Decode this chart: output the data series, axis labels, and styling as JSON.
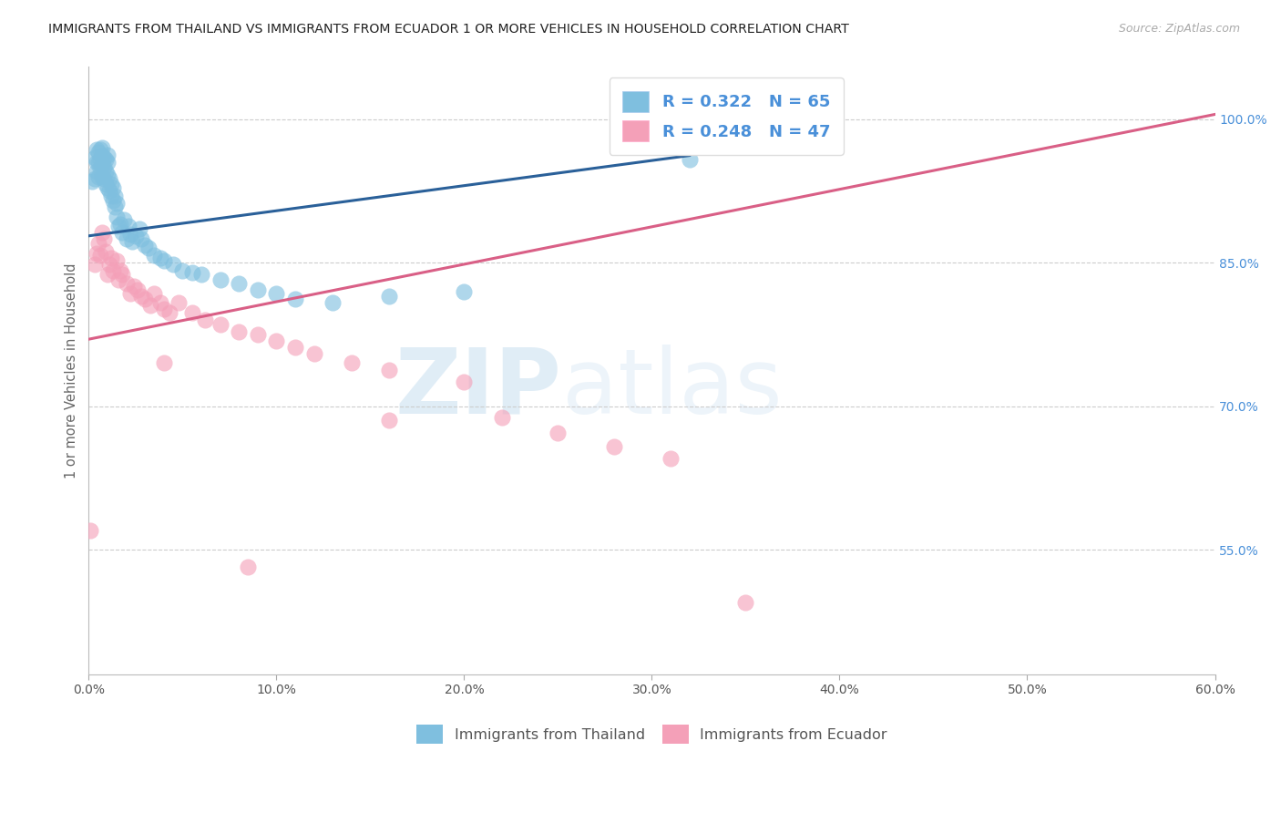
{
  "title": "IMMIGRANTS FROM THAILAND VS IMMIGRANTS FROM ECUADOR 1 OR MORE VEHICLES IN HOUSEHOLD CORRELATION CHART",
  "source": "Source: ZipAtlas.com",
  "ylabel": "1 or more Vehicles in Household",
  "ytick_vals": [
    0.55,
    0.7,
    0.85,
    1.0
  ],
  "ytick_labels": [
    "55.0%",
    "70.0%",
    "85.0%",
    "100.0%"
  ],
  "xtick_vals": [
    0.0,
    0.1,
    0.2,
    0.3,
    0.4,
    0.5,
    0.6
  ],
  "xtick_labels": [
    "0.0%",
    "10.0%",
    "20.0%",
    "30.0%",
    "40.0%",
    "50.0%",
    "60.0%"
  ],
  "xmin": 0.0,
  "xmax": 0.6,
  "ymin": 0.42,
  "ymax": 1.055,
  "thailand_R": "0.322",
  "thailand_N": "65",
  "ecuador_R": "0.248",
  "ecuador_N": "47",
  "thailand_color": "#7fbfdf",
  "ecuador_color": "#f4a0b8",
  "thailand_line_color": "#2a6099",
  "ecuador_line_color": "#d95f86",
  "legend_text_color": "#4a90d9",
  "background_color": "#ffffff",
  "thailand_trendline_x": [
    0.0,
    0.32
  ],
  "thailand_trendline_y": [
    0.878,
    0.962
  ],
  "ecuador_trendline_x": [
    0.0,
    0.6
  ],
  "ecuador_trendline_y": [
    0.77,
    1.005
  ],
  "thailand_scatter_x": [
    0.002,
    0.003,
    0.003,
    0.004,
    0.004,
    0.004,
    0.005,
    0.005,
    0.005,
    0.006,
    0.006,
    0.006,
    0.007,
    0.007,
    0.007,
    0.007,
    0.008,
    0.008,
    0.008,
    0.009,
    0.009,
    0.009,
    0.01,
    0.01,
    0.01,
    0.01,
    0.011,
    0.011,
    0.012,
    0.012,
    0.013,
    0.013,
    0.014,
    0.014,
    0.015,
    0.015,
    0.016,
    0.017,
    0.018,
    0.019,
    0.02,
    0.021,
    0.022,
    0.023,
    0.025,
    0.027,
    0.028,
    0.03,
    0.032,
    0.035,
    0.038,
    0.04,
    0.045,
    0.05,
    0.055,
    0.06,
    0.07,
    0.08,
    0.09,
    0.1,
    0.11,
    0.13,
    0.16,
    0.2,
    0.32
  ],
  "thailand_scatter_y": [
    0.935,
    0.938,
    0.96,
    0.945,
    0.955,
    0.968,
    0.94,
    0.955,
    0.965,
    0.948,
    0.958,
    0.968,
    0.94,
    0.952,
    0.962,
    0.97,
    0.938,
    0.95,
    0.96,
    0.932,
    0.945,
    0.958,
    0.928,
    0.942,
    0.955,
    0.963,
    0.925,
    0.938,
    0.92,
    0.932,
    0.915,
    0.928,
    0.908,
    0.92,
    0.898,
    0.912,
    0.888,
    0.89,
    0.882,
    0.895,
    0.875,
    0.888,
    0.88,
    0.872,
    0.878,
    0.885,
    0.875,
    0.868,
    0.865,
    0.858,
    0.855,
    0.852,
    0.848,
    0.842,
    0.84,
    0.838,
    0.832,
    0.828,
    0.822,
    0.818,
    0.812,
    0.808,
    0.815,
    0.82,
    0.958
  ],
  "ecuador_scatter_x": [
    0.001,
    0.003,
    0.004,
    0.005,
    0.006,
    0.007,
    0.008,
    0.009,
    0.01,
    0.011,
    0.012,
    0.013,
    0.015,
    0.016,
    0.017,
    0.018,
    0.02,
    0.022,
    0.024,
    0.026,
    0.028,
    0.03,
    0.033,
    0.035,
    0.038,
    0.04,
    0.043,
    0.048,
    0.055,
    0.062,
    0.07,
    0.08,
    0.09,
    0.1,
    0.11,
    0.12,
    0.14,
    0.16,
    0.2,
    0.22,
    0.25,
    0.28,
    0.31,
    0.35,
    0.16,
    0.04,
    0.085
  ],
  "ecuador_scatter_y": [
    0.57,
    0.848,
    0.86,
    0.87,
    0.858,
    0.882,
    0.875,
    0.862,
    0.838,
    0.848,
    0.855,
    0.842,
    0.852,
    0.832,
    0.842,
    0.838,
    0.828,
    0.818,
    0.825,
    0.822,
    0.815,
    0.812,
    0.805,
    0.818,
    0.808,
    0.802,
    0.798,
    0.808,
    0.798,
    0.79,
    0.785,
    0.778,
    0.775,
    0.768,
    0.762,
    0.755,
    0.745,
    0.738,
    0.725,
    0.688,
    0.672,
    0.658,
    0.645,
    0.495,
    0.685,
    0.745,
    0.532
  ]
}
